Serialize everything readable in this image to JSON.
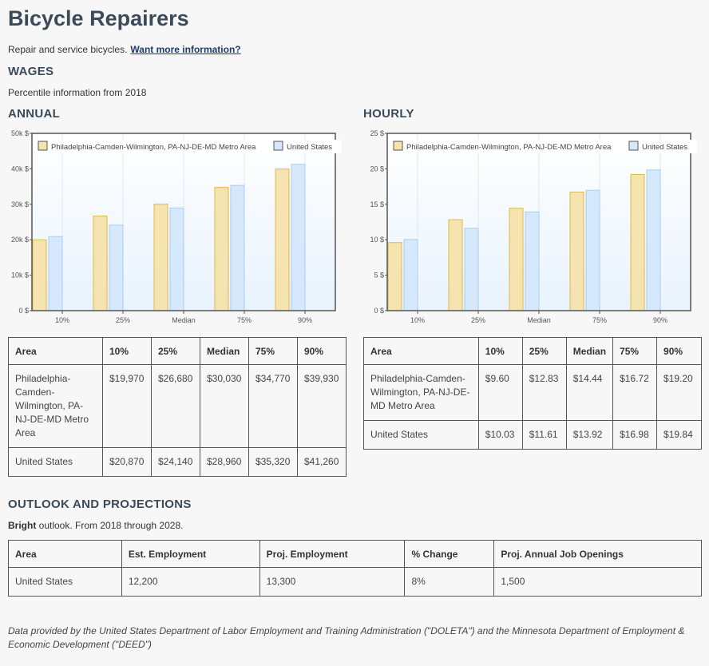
{
  "page": {
    "title": "Bicycle Repairers",
    "description": "Repair and service bicycles.",
    "more_link": "Want more information?",
    "footer": "Data provided by the United States Department of Labor Employment and Training Administration (\"DOLETA\") and the Minnesota Department of Employment & Economic Development (\"DEED\")"
  },
  "wages": {
    "heading": "WAGES",
    "subtitle": "Percentile information from 2018",
    "annual_heading": "ANNUAL",
    "hourly_heading": "HOURLY",
    "annual_table": {
      "headers": [
        "Area",
        "10%",
        "25%",
        "Median",
        "75%",
        "90%"
      ],
      "rows": [
        [
          "Philadelphia-Camden-Wilmington, PA-NJ-DE-MD Metro Area",
          "$19,970",
          "$26,680",
          "$30,030",
          "$34,770",
          "$39,930"
        ],
        [
          "United States",
          "$20,870",
          "$24,140",
          "$28,960",
          "$35,320",
          "$41,260"
        ]
      ]
    },
    "hourly_table": {
      "headers": [
        "Area",
        "10%",
        "25%",
        "Median",
        "75%",
        "90%"
      ],
      "rows": [
        [
          "Philadelphia-Camden-Wilmington, PA-NJ-DE-MD Metro Area",
          "$9.60",
          "$12.83",
          "$14.44",
          "$16.72",
          "$19.20"
        ],
        [
          "United States",
          "$10.03",
          "$11.61",
          "$13.92",
          "$16.98",
          "$19.84"
        ]
      ]
    }
  },
  "outlook": {
    "heading": "OUTLOOK AND PROJECTIONS",
    "bright": "Bright",
    "text": " outlook. From 2018 through 2028.",
    "headers": [
      "Area",
      "Est. Employment",
      "Proj. Employment",
      "% Change",
      "Proj. Annual Job Openings"
    ],
    "rows": [
      [
        "United States",
        "12,200",
        "13,300",
        "8%",
        "1,500"
      ]
    ]
  },
  "colors": {
    "metro_fill": "#f5e3b0",
    "metro_stroke": "#e0b94d",
    "us_fill": "#d6e8fb",
    "us_stroke": "#a9cdf2",
    "heading": "#3b4a59"
  },
  "chart_data": [
    {
      "type": "bar",
      "categories": [
        "10%",
        "25%",
        "Median",
        "75%",
        "90%"
      ],
      "series": [
        {
          "name": "Philadelphia-Camden-Wilmington, PA-NJ-DE-MD Metro Area",
          "values": [
            19970,
            26680,
            30030,
            34770,
            39930
          ]
        },
        {
          "name": "United States",
          "values": [
            20870,
            24140,
            28960,
            35320,
            41260
          ]
        }
      ],
      "ylim": [
        0,
        50000
      ],
      "yticks": [
        0,
        10000,
        20000,
        30000,
        40000,
        50000
      ],
      "ytick_labels": [
        "0 $",
        "10k $",
        "20k $",
        "30k $",
        "40k $",
        "50k $"
      ],
      "grid": true,
      "legend": "top"
    },
    {
      "type": "bar",
      "categories": [
        "10%",
        "25%",
        "Median",
        "75%",
        "90%"
      ],
      "series": [
        {
          "name": "Philadelphia-Camden-Wilmington, PA-NJ-DE-MD Metro Area",
          "values": [
            9.6,
            12.83,
            14.44,
            16.72,
            19.2
          ]
        },
        {
          "name": "United States",
          "values": [
            10.03,
            11.61,
            13.92,
            16.98,
            19.84
          ]
        }
      ],
      "ylim": [
        0,
        25
      ],
      "yticks": [
        0,
        5,
        10,
        15,
        20,
        25
      ],
      "ytick_labels": [
        "0 $",
        "5 $",
        "10 $",
        "15 $",
        "20 $",
        "25 $"
      ],
      "grid": true,
      "legend": "top"
    }
  ]
}
